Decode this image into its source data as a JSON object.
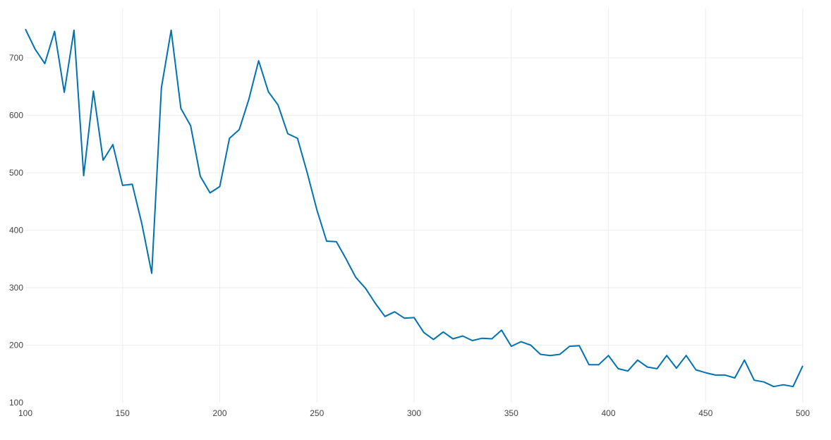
{
  "chart_data": {
    "type": "line",
    "title": "",
    "xlabel": "",
    "ylabel": "",
    "xlim": [
      100,
      500
    ],
    "ylim": [
      100,
      760
    ],
    "x_ticks": [
      100,
      150,
      200,
      250,
      300,
      350,
      400,
      450,
      500
    ],
    "y_ticks": [
      100,
      200,
      300,
      400,
      500,
      600,
      700
    ],
    "grid": true,
    "legend": "none",
    "line_color": "#0072b2",
    "series": [
      {
        "x": [
          100,
          105,
          110,
          115,
          120,
          125,
          130,
          135,
          140,
          145,
          150,
          155,
          160,
          165,
          170,
          175,
          180,
          185,
          190,
          195,
          200,
          205,
          210,
          215,
          220,
          225,
          230,
          235,
          240,
          245,
          250,
          255,
          260,
          265,
          270,
          275,
          280,
          285,
          290,
          295,
          300,
          305,
          310,
          315,
          320,
          325,
          330,
          335,
          340,
          345,
          350,
          355,
          360,
          365,
          370,
          375,
          380,
          385,
          390,
          395,
          400,
          405,
          410,
          415,
          420,
          425,
          430,
          435,
          440,
          445,
          450,
          455,
          460,
          465,
          470,
          475,
          480,
          485,
          490,
          495,
          500
        ],
        "y": [
          750,
          715,
          690,
          746,
          640,
          748,
          495,
          642,
          522,
          549,
          478,
          480,
          410,
          325,
          648,
          748,
          612,
          582,
          494,
          465,
          476,
          560,
          575,
          628,
          695,
          641,
          618,
          568,
          560,
          500,
          435,
          381,
          380,
          350,
          318,
          299,
          273,
          250,
          258,
          247,
          248,
          222,
          210,
          223,
          211,
          216,
          208,
          212,
          211,
          226,
          198,
          206,
          200,
          184,
          182,
          184,
          198,
          199,
          166,
          166,
          182,
          159,
          155,
          174,
          162,
          159,
          182,
          160,
          182,
          157,
          152,
          148,
          148,
          143,
          174,
          139,
          136,
          128,
          131,
          128,
          164
        ]
      }
    ]
  }
}
